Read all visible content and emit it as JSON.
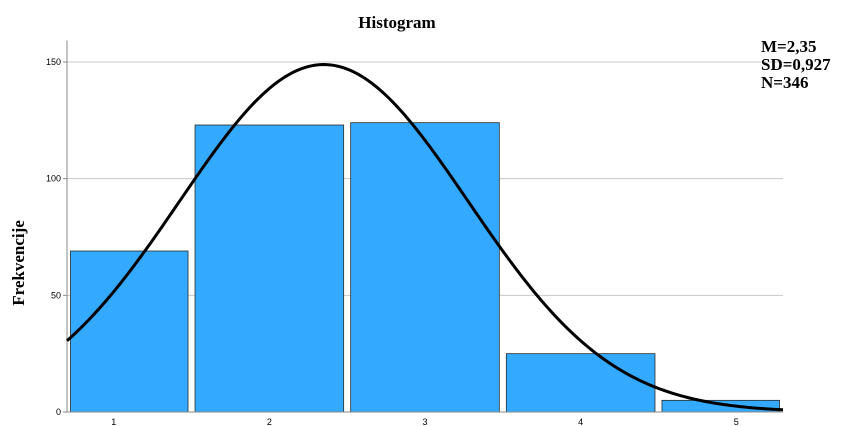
{
  "chart_data": {
    "type": "bar",
    "title": "Histogram",
    "xlabel": "",
    "ylabel": "Frekvencije",
    "categories": [
      "1",
      "2",
      "3",
      "4",
      "5"
    ],
    "values": [
      69,
      123,
      124,
      25,
      5
    ],
    "xlim": [
      0.7,
      5.3
    ],
    "ylim": [
      0,
      160
    ],
    "yticks": [
      0,
      50,
      100,
      150
    ],
    "grid": true,
    "bar_color": "#33aaff",
    "curve_color": "#000000",
    "normal_curve": {
      "mean": 2.35,
      "sd": 0.927,
      "n": 346,
      "bin_width": 1
    },
    "stats": [
      "M=2,35",
      "SD=0,927",
      "N=346"
    ]
  }
}
